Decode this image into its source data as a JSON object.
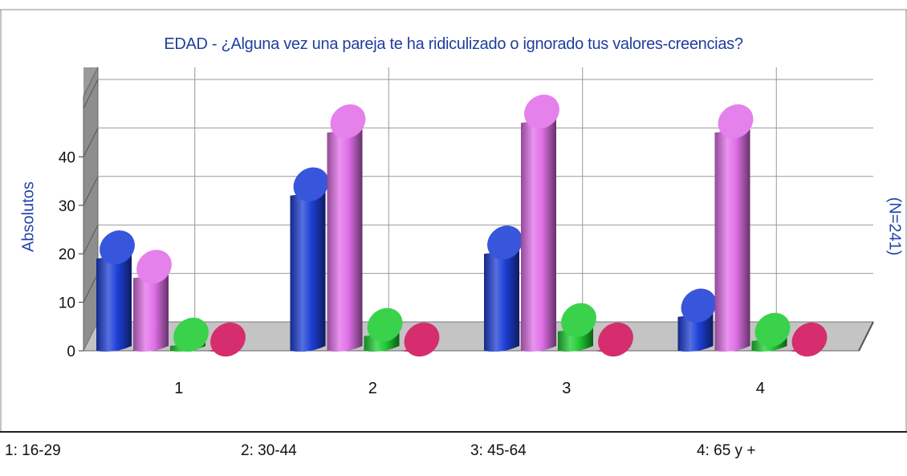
{
  "chart_data": {
    "type": "bar",
    "title": "EDAD - ¿Alguna vez una pareja te ha ridiculizado o ignorado tus valores-creencias?",
    "ylabel": "Absolutos",
    "note": "(N=241)",
    "categories": [
      "1",
      "2",
      "3",
      "4"
    ],
    "yticks": [
      0,
      10,
      20,
      30,
      40
    ],
    "ylim": [
      0,
      50
    ],
    "grid": true,
    "series": [
      {
        "color": "#1d3fd6",
        "values": [
          19,
          32,
          20,
          7
        ]
      },
      {
        "color": "#e070e8",
        "values": [
          15,
          45,
          47,
          45
        ]
      },
      {
        "color": "#1fcc33",
        "values": [
          1,
          3,
          4,
          2
        ]
      },
      {
        "color": "#d0105a",
        "values": [
          0,
          0,
          0,
          0
        ]
      }
    ],
    "legend": [
      {
        "label": "1: 16-29"
      },
      {
        "label": "2: 30-44"
      },
      {
        "label": "3: 45-64"
      },
      {
        "label": "4: 65 y +"
      }
    ]
  }
}
